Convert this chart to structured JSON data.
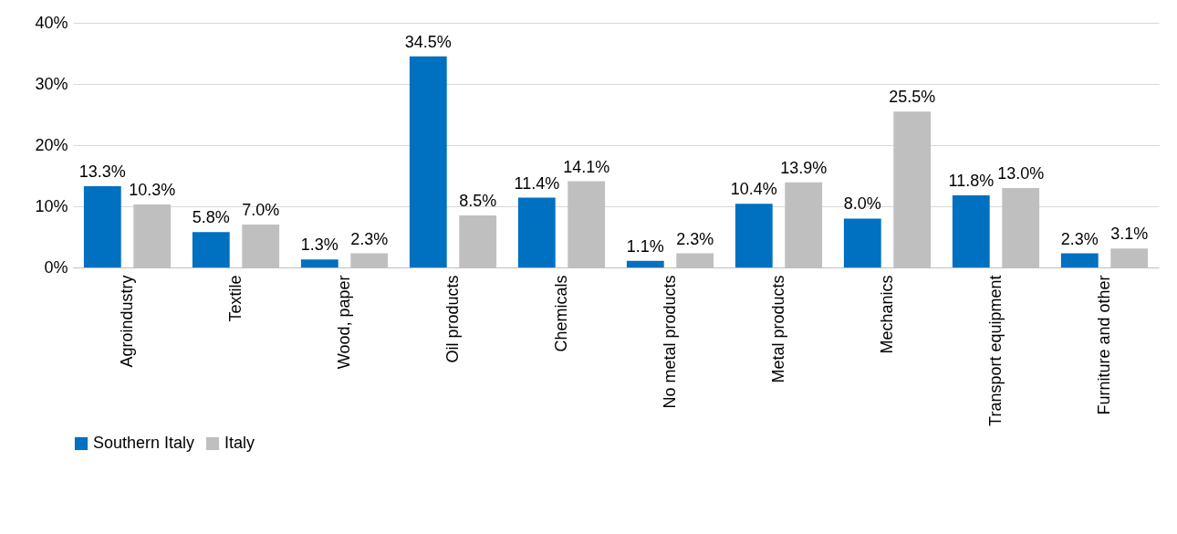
{
  "chart_data": {
    "type": "bar",
    "categories": [
      "Agroindustry",
      "Textile",
      "Wood, paper",
      "Oil products",
      "Chemicals",
      "No metal products",
      "Metal products",
      "Mechanics",
      "Transport equipment",
      "Furniture and other"
    ],
    "series": [
      {
        "name": "Southern Italy",
        "color": "#0070c0",
        "values": [
          13.3,
          5.8,
          1.3,
          34.5,
          11.4,
          1.1,
          10.4,
          8.0,
          11.8,
          2.3
        ],
        "value_labels": [
          "13.3%",
          "5.8%",
          "1.3%",
          "34.5%",
          "11.4%",
          "1.1%",
          "10.4%",
          "8.0%",
          "11.8%",
          "2.3%"
        ]
      },
      {
        "name": "Italy",
        "color": "#bfbfbf",
        "values": [
          10.3,
          7.0,
          2.3,
          8.5,
          14.1,
          2.3,
          13.9,
          25.5,
          13.0,
          3.1
        ],
        "value_labels": [
          "10.3%",
          "7.0%",
          "2.3%",
          "8.5%",
          "14.1%",
          "2.3%",
          "13.9%",
          "25.5%",
          "13.0%",
          "3.1%"
        ]
      }
    ],
    "ylim": [
      0,
      40
    ],
    "yticks": [
      {
        "value": 0,
        "label": "0%"
      },
      {
        "value": 10,
        "label": "10%"
      },
      {
        "value": 20,
        "label": "20%"
      },
      {
        "value": 30,
        "label": "30%"
      },
      {
        "value": 40,
        "label": "40%"
      }
    ],
    "grid": "y",
    "legend": "bottom"
  }
}
